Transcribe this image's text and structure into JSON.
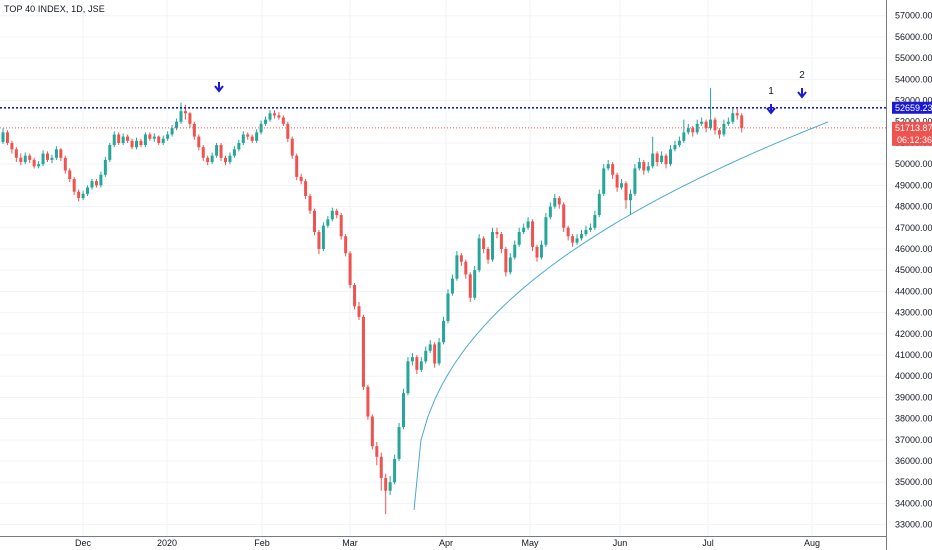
{
  "header": {
    "title": "TOP 40 INDEX, 1D, JSE"
  },
  "colors": {
    "up": "#26a69a",
    "down": "#ef5350",
    "resistance": "#1a1ad4",
    "current": "#ef5350",
    "curve": "#4aa9d6",
    "arrow": "#1a1ad4",
    "grid": "#f0f3fa",
    "axis": "#787b86"
  },
  "chart_data": {
    "type": "candlestick",
    "ylim": [
      32700,
      57600
    ],
    "y_ticks": [
      "33000.00",
      "34000.00",
      "35000.00",
      "36000.00",
      "37000.00",
      "38000.00",
      "39000.00",
      "40000.00",
      "41000.00",
      "42000.00",
      "43000.00",
      "44000.00",
      "45000.00",
      "46000.00",
      "47000.00",
      "48000.00",
      "49000.00",
      "50000.00",
      "51000.00",
      "52000.00",
      "53000.00",
      "54000.00",
      "55000.00",
      "56000.00",
      "57000.00"
    ],
    "x_labels": [
      "Dec",
      "2020",
      "Feb",
      "Mar",
      "Apr",
      "May",
      "Jun",
      "Jul",
      "Aug"
    ],
    "resistance_level": "52659.23",
    "last_price": "51713.87",
    "countdown": "06:12:36",
    "annotations": [
      {
        "label": "",
        "type": "arrow-down"
      },
      {
        "label": "1",
        "type": "arrow-down"
      },
      {
        "label": "2",
        "type": "arrow-down"
      }
    ],
    "closes": [
      51500,
      51000,
      50700,
      50300,
      50100,
      50400,
      50200,
      49900,
      50000,
      50500,
      50200,
      50300,
      50700,
      50300,
      49700,
      49300,
      48700,
      48400,
      48600,
      48900,
      49200,
      49000,
      49500,
      50200,
      50900,
      51400,
      51000,
      51300,
      51100,
      50800,
      51100,
      50900,
      51400,
      51200,
      51300,
      51000,
      51200,
      51400,
      51700,
      52000,
      52500,
      52400,
      51900,
      51300,
      50800,
      50300,
      50100,
      50400,
      50900,
      50300,
      50100,
      50400,
      50700,
      51000,
      51400,
      51300,
      51100,
      51500,
      51900,
      52100,
      52400,
      52300,
      52200,
      51900,
      51200,
      50400,
      49400,
      49200,
      48500,
      47800,
      46800,
      46000,
      47100,
      47400,
      47800,
      47600,
      46600,
      45800,
      44300,
      43300,
      42800,
      39500,
      38100,
      36700,
      36200,
      35200,
      34600,
      35000,
      36100,
      37600,
      39200,
      40700,
      40900,
      40300,
      40700,
      41200,
      41500,
      40600,
      41600,
      42600,
      43900,
      44600,
      45700,
      45400,
      44800,
      43700,
      45000,
      46500,
      46000,
      45500,
      46800,
      46700,
      46000,
      44900,
      45600,
      46200,
      46800,
      47000,
      47300,
      46100,
      45600,
      46200,
      47500,
      48000,
      48400,
      48100,
      47000,
      46600,
      46300,
      46500,
      46700,
      46900,
      47000,
      47600,
      48600,
      49800,
      50000,
      49500,
      48900,
      49100,
      48300,
      48600,
      49800,
      50100,
      49700,
      49900,
      50500,
      50100,
      50400,
      50000,
      50700,
      50900,
      51100,
      51500,
      51700,
      51500,
      51900,
      52000,
      51700,
      52100,
      51600,
      51400,
      51900,
      52000,
      52400,
      52300,
      51700
    ],
    "candles": [
      {
        "o": 51050,
        "c": 51500,
        "h": 51700,
        "l": 50950
      },
      {
        "o": 51500,
        "c": 51000,
        "h": 51600,
        "l": 50900
      },
      {
        "o": 51000,
        "c": 50700,
        "h": 51100,
        "l": 50500
      },
      {
        "o": 50700,
        "c": 50300,
        "h": 50800,
        "l": 50100
      },
      {
        "o": 50300,
        "c": 50100,
        "h": 50500,
        "l": 49950
      },
      {
        "o": 50100,
        "c": 50400,
        "h": 50550,
        "l": 50000
      },
      {
        "o": 50400,
        "c": 50200,
        "h": 50500,
        "l": 50050
      },
      {
        "o": 50200,
        "c": 49900,
        "h": 50300,
        "l": 49800
      },
      {
        "o": 49900,
        "c": 50000,
        "h": 50150,
        "l": 49800
      },
      {
        "o": 50000,
        "c": 50500,
        "h": 50650,
        "l": 49900
      },
      {
        "o": 50500,
        "c": 50200,
        "h": 50600,
        "l": 50100
      },
      {
        "o": 50200,
        "c": 50300,
        "h": 50450,
        "l": 50050
      },
      {
        "o": 50300,
        "c": 50700,
        "h": 50850,
        "l": 50200
      },
      {
        "o": 50700,
        "c": 50300,
        "h": 50750,
        "l": 50150
      },
      {
        "o": 50300,
        "c": 49700,
        "h": 50400,
        "l": 49550
      },
      {
        "o": 49700,
        "c": 49300,
        "h": 49800,
        "l": 49150
      },
      {
        "o": 49300,
        "c": 48700,
        "h": 49400,
        "l": 48550
      },
      {
        "o": 48700,
        "c": 48400,
        "h": 48800,
        "l": 48250
      },
      {
        "o": 48400,
        "c": 48600,
        "h": 48750,
        "l": 48300
      },
      {
        "o": 48600,
        "c": 48900,
        "h": 49000,
        "l": 48500
      },
      {
        "o": 48900,
        "c": 49200,
        "h": 49300,
        "l": 48800
      },
      {
        "o": 49200,
        "c": 49000,
        "h": 49300,
        "l": 48900
      },
      {
        "o": 49000,
        "c": 49500,
        "h": 49650,
        "l": 48900
      },
      {
        "o": 49500,
        "c": 50200,
        "h": 50350,
        "l": 49400
      },
      {
        "o": 50200,
        "c": 50900,
        "h": 51000,
        "l": 50100
      },
      {
        "o": 50900,
        "c": 51400,
        "h": 51550,
        "l": 50800
      },
      {
        "o": 51400,
        "c": 51000,
        "h": 51500,
        "l": 50900
      },
      {
        "o": 51000,
        "c": 51300,
        "h": 51450,
        "l": 50900
      },
      {
        "o": 51300,
        "c": 51100,
        "h": 51400,
        "l": 51000
      },
      {
        "o": 51100,
        "c": 50800,
        "h": 51200,
        "l": 50700
      },
      {
        "o": 50800,
        "c": 51100,
        "h": 51250,
        "l": 50700
      },
      {
        "o": 51100,
        "c": 50900,
        "h": 51200,
        "l": 50800
      },
      {
        "o": 50900,
        "c": 51400,
        "h": 51500,
        "l": 50800
      },
      {
        "o": 51400,
        "c": 51200,
        "h": 51500,
        "l": 51100
      },
      {
        "o": 51200,
        "c": 51300,
        "h": 51450,
        "l": 51050
      },
      {
        "o": 51300,
        "c": 51000,
        "h": 51350,
        "l": 50900
      },
      {
        "o": 51000,
        "c": 51200,
        "h": 51350,
        "l": 50900
      },
      {
        "o": 51200,
        "c": 51400,
        "h": 51550,
        "l": 51100
      },
      {
        "o": 51400,
        "c": 51700,
        "h": 51850,
        "l": 51300
      },
      {
        "o": 51700,
        "c": 52000,
        "h": 52150,
        "l": 51600
      },
      {
        "o": 52000,
        "c": 52500,
        "h": 52900,
        "l": 51900
      },
      {
        "o": 52500,
        "c": 52400,
        "h": 52800,
        "l": 52100
      },
      {
        "o": 52400,
        "c": 51900,
        "h": 52450,
        "l": 51700
      },
      {
        "o": 51900,
        "c": 51300,
        "h": 52000,
        "l": 51150
      },
      {
        "o": 51300,
        "c": 50800,
        "h": 51400,
        "l": 50650
      },
      {
        "o": 50800,
        "c": 50300,
        "h": 50900,
        "l": 50150
      },
      {
        "o": 50300,
        "c": 50100,
        "h": 50400,
        "l": 49950
      },
      {
        "o": 50100,
        "c": 50400,
        "h": 50550,
        "l": 50000
      },
      {
        "o": 50400,
        "c": 50900,
        "h": 51000,
        "l": 50300
      },
      {
        "o": 50900,
        "c": 50300,
        "h": 51000,
        "l": 50150
      },
      {
        "o": 50300,
        "c": 50100,
        "h": 50400,
        "l": 49950
      },
      {
        "o": 50100,
        "c": 50400,
        "h": 50550,
        "l": 50000
      },
      {
        "o": 50400,
        "c": 50700,
        "h": 50850,
        "l": 50300
      },
      {
        "o": 50700,
        "c": 51000,
        "h": 51150,
        "l": 50600
      },
      {
        "o": 51000,
        "c": 51400,
        "h": 51550,
        "l": 50900
      },
      {
        "o": 51400,
        "c": 51300,
        "h": 51500,
        "l": 51150
      },
      {
        "o": 51300,
        "c": 51100,
        "h": 51400,
        "l": 51000
      },
      {
        "o": 51100,
        "c": 51500,
        "h": 51650,
        "l": 51000
      },
      {
        "o": 51500,
        "c": 51900,
        "h": 52050,
        "l": 51400
      },
      {
        "o": 51900,
        "c": 52100,
        "h": 52250,
        "l": 51800
      },
      {
        "o": 52100,
        "c": 52400,
        "h": 52550,
        "l": 52000
      },
      {
        "o": 52400,
        "c": 52300,
        "h": 52550,
        "l": 52150
      },
      {
        "o": 52300,
        "c": 52200,
        "h": 52450,
        "l": 52100
      },
      {
        "o": 52200,
        "c": 51900,
        "h": 52300,
        "l": 51800
      },
      {
        "o": 51900,
        "c": 51200,
        "h": 52000,
        "l": 51050
      },
      {
        "o": 51200,
        "c": 50400,
        "h": 51300,
        "l": 50250
      },
      {
        "o": 50400,
        "c": 49400,
        "h": 50500,
        "l": 49250
      },
      {
        "o": 49400,
        "c": 49200,
        "h": 49550,
        "l": 49050
      },
      {
        "o": 49200,
        "c": 48500,
        "h": 49300,
        "l": 48350
      },
      {
        "o": 48500,
        "c": 47800,
        "h": 48600,
        "l": 47650
      },
      {
        "o": 47800,
        "c": 46800,
        "h": 47900,
        "l": 46650
      },
      {
        "o": 46800,
        "c": 46000,
        "h": 46900,
        "l": 45750
      },
      {
        "o": 46000,
        "c": 47100,
        "h": 47250,
        "l": 45900
      },
      {
        "o": 47100,
        "c": 47400,
        "h": 47550,
        "l": 47000
      },
      {
        "o": 47400,
        "c": 47800,
        "h": 47950,
        "l": 47300
      },
      {
        "o": 47800,
        "c": 47600,
        "h": 47900,
        "l": 47450
      },
      {
        "o": 47600,
        "c": 46600,
        "h": 47700,
        "l": 46450
      },
      {
        "o": 46600,
        "c": 45800,
        "h": 46700,
        "l": 45650
      },
      {
        "o": 45800,
        "c": 44300,
        "h": 45900,
        "l": 44150
      },
      {
        "o": 44300,
        "c": 43300,
        "h": 44400,
        "l": 43150
      },
      {
        "o": 43300,
        "c": 42800,
        "h": 43500,
        "l": 42650
      },
      {
        "o": 42800,
        "c": 39500,
        "h": 42900,
        "l": 39350
      },
      {
        "o": 39500,
        "c": 38100,
        "h": 39600,
        "l": 37950
      },
      {
        "o": 38100,
        "c": 36700,
        "h": 38200,
        "l": 36550
      },
      {
        "o": 36700,
        "c": 36200,
        "h": 36900,
        "l": 35800
      },
      {
        "o": 36200,
        "c": 35200,
        "h": 36400,
        "l": 34600
      },
      {
        "o": 35200,
        "c": 34600,
        "h": 35400,
        "l": 33500
      },
      {
        "o": 34600,
        "c": 35000,
        "h": 35300,
        "l": 34400
      },
      {
        "o": 35000,
        "c": 36100,
        "h": 36300,
        "l": 34900
      },
      {
        "o": 36100,
        "c": 37600,
        "h": 37800,
        "l": 36000
      },
      {
        "o": 37600,
        "c": 39200,
        "h": 39400,
        "l": 37500
      },
      {
        "o": 39200,
        "c": 40700,
        "h": 40900,
        "l": 39100
      },
      {
        "o": 40700,
        "c": 40900,
        "h": 41100,
        "l": 40500
      },
      {
        "o": 40900,
        "c": 40300,
        "h": 41000,
        "l": 40100
      },
      {
        "o": 40300,
        "c": 40700,
        "h": 40900,
        "l": 40200
      },
      {
        "o": 40700,
        "c": 41200,
        "h": 41400,
        "l": 40600
      },
      {
        "o": 41200,
        "c": 41500,
        "h": 41700,
        "l": 41100
      },
      {
        "o": 41500,
        "c": 40600,
        "h": 41600,
        "l": 40400
      },
      {
        "o": 40600,
        "c": 41600,
        "h": 41800,
        "l": 40500
      },
      {
        "o": 41600,
        "c": 42600,
        "h": 42800,
        "l": 41500
      },
      {
        "o": 42600,
        "c": 43900,
        "h": 44100,
        "l": 42500
      },
      {
        "o": 43900,
        "c": 44600,
        "h": 44800,
        "l": 43800
      },
      {
        "o": 44600,
        "c": 45700,
        "h": 45900,
        "l": 44500
      },
      {
        "o": 45700,
        "c": 45400,
        "h": 45800,
        "l": 45200
      },
      {
        "o": 45400,
        "c": 44800,
        "h": 45500,
        "l": 44600
      },
      {
        "o": 44800,
        "c": 43700,
        "h": 44900,
        "l": 43500
      },
      {
        "o": 43700,
        "c": 45000,
        "h": 45200,
        "l": 43600
      },
      {
        "o": 45000,
        "c": 46500,
        "h": 46700,
        "l": 44900
      },
      {
        "o": 46500,
        "c": 46000,
        "h": 46600,
        "l": 45800
      },
      {
        "o": 46000,
        "c": 45500,
        "h": 46100,
        "l": 45300
      },
      {
        "o": 45500,
        "c": 46800,
        "h": 47000,
        "l": 45400
      },
      {
        "o": 46800,
        "c": 46700,
        "h": 47000,
        "l": 46500
      },
      {
        "o": 46700,
        "c": 46000,
        "h": 46800,
        "l": 45800
      },
      {
        "o": 46000,
        "c": 44900,
        "h": 46100,
        "l": 44700
      },
      {
        "o": 44900,
        "c": 45600,
        "h": 45800,
        "l": 44800
      },
      {
        "o": 45600,
        "c": 46200,
        "h": 46400,
        "l": 45500
      },
      {
        "o": 46200,
        "c": 46800,
        "h": 47000,
        "l": 46100
      },
      {
        "o": 46800,
        "c": 47000,
        "h": 47200,
        "l": 46700
      },
      {
        "o": 47000,
        "c": 47300,
        "h": 47500,
        "l": 46900
      },
      {
        "o": 47300,
        "c": 46100,
        "h": 47400,
        "l": 45900
      },
      {
        "o": 46100,
        "c": 45600,
        "h": 46200,
        "l": 45400
      },
      {
        "o": 45600,
        "c": 46200,
        "h": 46400,
        "l": 45500
      },
      {
        "o": 46200,
        "c": 47500,
        "h": 47700,
        "l": 46100
      },
      {
        "o": 47500,
        "c": 48000,
        "h": 48200,
        "l": 47400
      },
      {
        "o": 48000,
        "c": 48400,
        "h": 48600,
        "l": 47900
      },
      {
        "o": 48400,
        "c": 48100,
        "h": 48500,
        "l": 47900
      },
      {
        "o": 48100,
        "c": 47000,
        "h": 48200,
        "l": 46800
      },
      {
        "o": 47000,
        "c": 46600,
        "h": 47100,
        "l": 46400
      },
      {
        "o": 46600,
        "c": 46300,
        "h": 46700,
        "l": 46100
      },
      {
        "o": 46300,
        "c": 46500,
        "h": 46700,
        "l": 46200
      },
      {
        "o": 46500,
        "c": 46700,
        "h": 46900,
        "l": 46400
      },
      {
        "o": 46700,
        "c": 46900,
        "h": 47100,
        "l": 46600
      },
      {
        "o": 46900,
        "c": 47000,
        "h": 47200,
        "l": 46800
      },
      {
        "o": 47000,
        "c": 47600,
        "h": 47800,
        "l": 46900
      },
      {
        "o": 47600,
        "c": 48600,
        "h": 48800,
        "l": 47500
      },
      {
        "o": 48600,
        "c": 49800,
        "h": 50000,
        "l": 48500
      },
      {
        "o": 49800,
        "c": 50000,
        "h": 50200,
        "l": 49700
      },
      {
        "o": 50000,
        "c": 49500,
        "h": 50100,
        "l": 49300
      },
      {
        "o": 49500,
        "c": 48900,
        "h": 49600,
        "l": 48700
      },
      {
        "o": 48900,
        "c": 49100,
        "h": 49300,
        "l": 48800
      },
      {
        "o": 49100,
        "c": 48300,
        "h": 49200,
        "l": 47900
      },
      {
        "o": 48300,
        "c": 48600,
        "h": 48800,
        "l": 47600
      },
      {
        "o": 48600,
        "c": 49800,
        "h": 50000,
        "l": 48500
      },
      {
        "o": 49800,
        "c": 50100,
        "h": 50300,
        "l": 49700
      },
      {
        "o": 50100,
        "c": 49700,
        "h": 50200,
        "l": 49500
      },
      {
        "o": 49700,
        "c": 49900,
        "h": 50100,
        "l": 49600
      },
      {
        "o": 49900,
        "c": 50500,
        "h": 51300,
        "l": 49800
      },
      {
        "o": 50500,
        "c": 50100,
        "h": 50600,
        "l": 49900
      },
      {
        "o": 50100,
        "c": 50400,
        "h": 50600,
        "l": 50000
      },
      {
        "o": 50400,
        "c": 50000,
        "h": 50500,
        "l": 49800
      },
      {
        "o": 50000,
        "c": 50700,
        "h": 50900,
        "l": 49900
      },
      {
        "o": 50700,
        "c": 50900,
        "h": 51100,
        "l": 50600
      },
      {
        "o": 50900,
        "c": 51100,
        "h": 51300,
        "l": 50800
      },
      {
        "o": 51100,
        "c": 51500,
        "h": 52100,
        "l": 51000
      },
      {
        "o": 51500,
        "c": 51700,
        "h": 51900,
        "l": 51400
      },
      {
        "o": 51700,
        "c": 51500,
        "h": 51800,
        "l": 51300
      },
      {
        "o": 51500,
        "c": 51900,
        "h": 52100,
        "l": 51400
      },
      {
        "o": 51900,
        "c": 52000,
        "h": 52200,
        "l": 51800
      },
      {
        "o": 52000,
        "c": 51700,
        "h": 52100,
        "l": 51500
      },
      {
        "o": 51700,
        "c": 52100,
        "h": 53600,
        "l": 51600
      },
      {
        "o": 52100,
        "c": 51600,
        "h": 52200,
        "l": 51400
      },
      {
        "o": 51600,
        "c": 51400,
        "h": 51700,
        "l": 51200
      },
      {
        "o": 51400,
        "c": 51900,
        "h": 52100,
        "l": 51300
      },
      {
        "o": 51900,
        "c": 52000,
        "h": 52200,
        "l": 51800
      },
      {
        "o": 52000,
        "c": 52400,
        "h": 52600,
        "l": 51900
      },
      {
        "o": 52400,
        "c": 52300,
        "h": 52600,
        "l": 52100
      },
      {
        "o": 52300,
        "c": 51700,
        "h": 52400,
        "l": 51500
      }
    ]
  }
}
